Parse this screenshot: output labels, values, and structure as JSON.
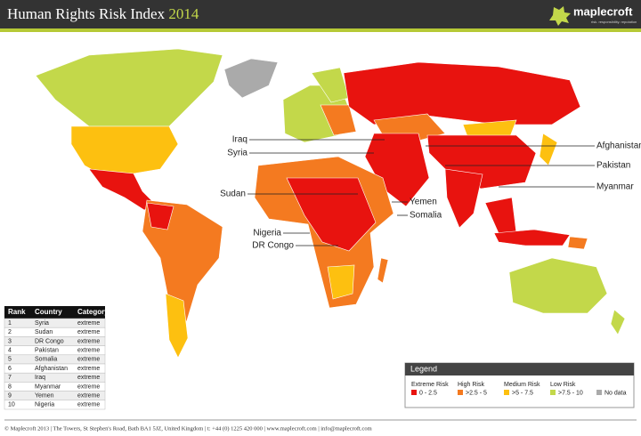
{
  "header": {
    "title": "Human Rights Risk Index",
    "year": "2014",
    "logo": "maplecroft",
    "logo_tagline": "risk. responsibility. reputation"
  },
  "map_labels": [
    "Iraq",
    "Syria",
    "Sudan",
    "Nigeria",
    "DR Congo",
    "Yemen",
    "Somalia",
    "Afghanistan",
    "Pakistan",
    "Myanmar"
  ],
  "table": {
    "columns": [
      "Rank",
      "Country",
      "Category"
    ],
    "rows": [
      [
        "1",
        "Syria",
        "extreme"
      ],
      [
        "2",
        "Sudan",
        "extreme"
      ],
      [
        "3",
        "DR Congo",
        "extreme"
      ],
      [
        "4",
        "Pakistan",
        "extreme"
      ],
      [
        "5",
        "Somalia",
        "extreme"
      ],
      [
        "6",
        "Afghanistan",
        "extreme"
      ],
      [
        "7",
        "Iraq",
        "extreme"
      ],
      [
        "8",
        "Myanmar",
        "extreme"
      ],
      [
        "9",
        "Yemen",
        "extreme"
      ],
      [
        "10",
        "Nigeria",
        "extreme"
      ]
    ]
  },
  "legend": {
    "title": "Legend",
    "items": [
      {
        "name": "Extreme Risk",
        "range": "0 - 2.5",
        "color": "#e8130f"
      },
      {
        "name": "High Risk",
        "range": ">2.5 - 5",
        "color": "#f47a20"
      },
      {
        "name": "Medium Risk",
        "range": ">5 - 7.5",
        "color": "#fdc010"
      },
      {
        "name": "Low Risk",
        "range": ">7.5 - 10",
        "color": "#c3d84a"
      },
      {
        "name": "",
        "range": "No data",
        "color": "#aaaaaa"
      }
    ]
  },
  "footer": "© Maplecroft 2013 | The Towers, St Stephen's Road, Bath BA1 5JZ, United Kingdom | t: +44 (0) 1225 420 000 | www.maplecroft.com | info@maplecroft.com"
}
